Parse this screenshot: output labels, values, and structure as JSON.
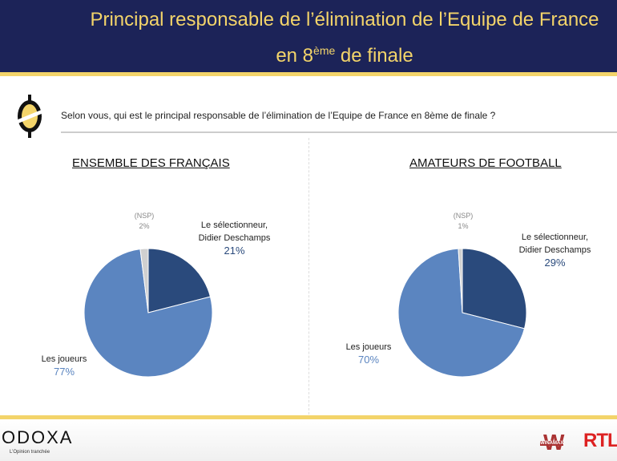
{
  "header": {
    "title_line1": "Principal responsable de l’élimination de l’Equipe de France",
    "title_line2_pre": "en 8",
    "title_line2_sup": "ème",
    "title_line2_post": " de finale"
  },
  "question": "Selon vous, qui est le principal responsable de l’élimination de l’Equipe de France en 8ème de finale ?",
  "colors": {
    "navy": "#1c2358",
    "yellow": "#f3d46a",
    "selectionneur": "#2a4a7c",
    "joueurs": "#5b85c0",
    "nsp": "#d0d0d0"
  },
  "chart_data": [
    {
      "type": "pie",
      "title": "ENSEMBLE DES FRANÇAIS",
      "slices": [
        {
          "label": "Le sélectionneur, Didier Deschamps",
          "value": 21,
          "display": "21%"
        },
        {
          "label": "Les joueurs",
          "value": 77,
          "display": "77%"
        },
        {
          "label": "(NSP)",
          "value": 2,
          "display": "2%"
        }
      ]
    },
    {
      "type": "pie",
      "title": "AMATEURS DE FOOTBALL",
      "slices": [
        {
          "label": "Le sélectionneur, Didier Deschamps",
          "value": 29,
          "display": "29%"
        },
        {
          "label": "Les joueurs",
          "value": 70,
          "display": "70%"
        },
        {
          "label": "(NSP)",
          "value": 1,
          "display": "1%"
        }
      ]
    }
  ],
  "footer": {
    "brand": "ODOXA",
    "tagline": "L’Opinion tranchée",
    "partner1": "WINAMAX",
    "partner2": "RTL"
  }
}
